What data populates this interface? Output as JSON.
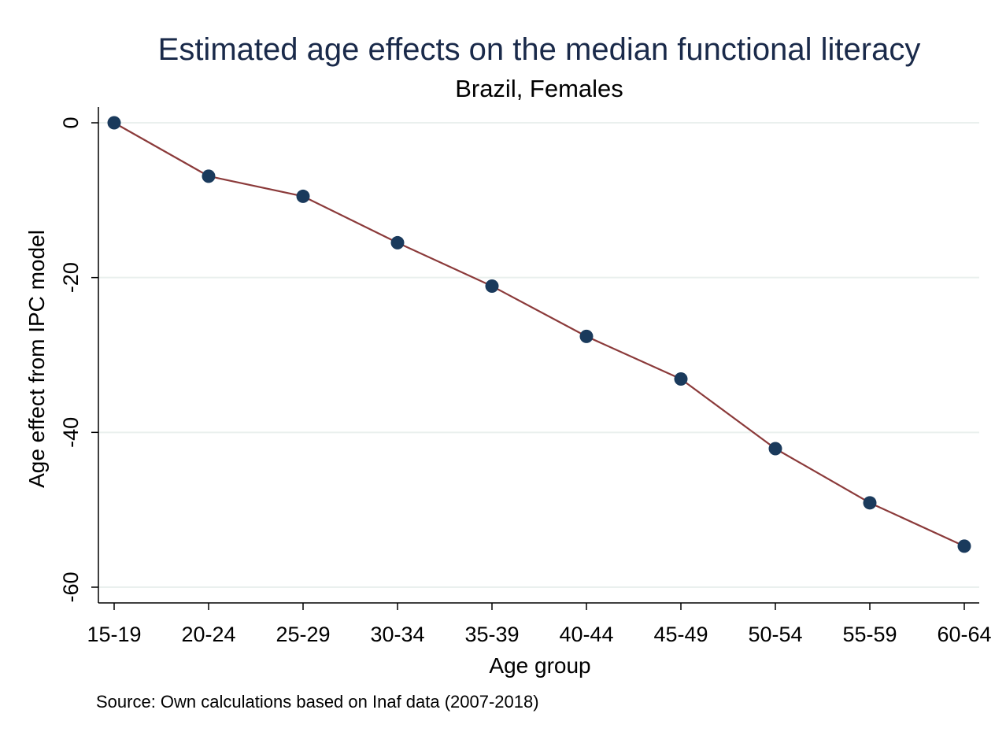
{
  "chart_data": {
    "type": "line",
    "title": "Estimated age effects on the median functional literacy",
    "subtitle": "Brazil, Females",
    "xlabel": "Age group",
    "ylabel": "Age effect from IPC model",
    "note": "Source: Own calculations based on Inaf data (2007-2018)",
    "categories": [
      "15-19",
      "20-24",
      "25-29",
      "30-34",
      "35-39",
      "40-44",
      "45-49",
      "50-54",
      "55-59",
      "60-64"
    ],
    "series": [
      {
        "values": [
          0,
          -6.9,
          -9.5,
          -15.5,
          -21.1,
          -27.6,
          -33.1,
          -42.1,
          -49.1,
          -54.7
        ]
      }
    ],
    "ylim": [
      -62,
      2
    ],
    "yticks": [
      0,
      -20,
      -40,
      -60
    ],
    "grid": true,
    "legend": "none",
    "colors": {
      "line": "#8b3a3a",
      "marker": "#1a3a5c",
      "grid": "#eaf0ee",
      "title": "#1a2a4a"
    }
  }
}
